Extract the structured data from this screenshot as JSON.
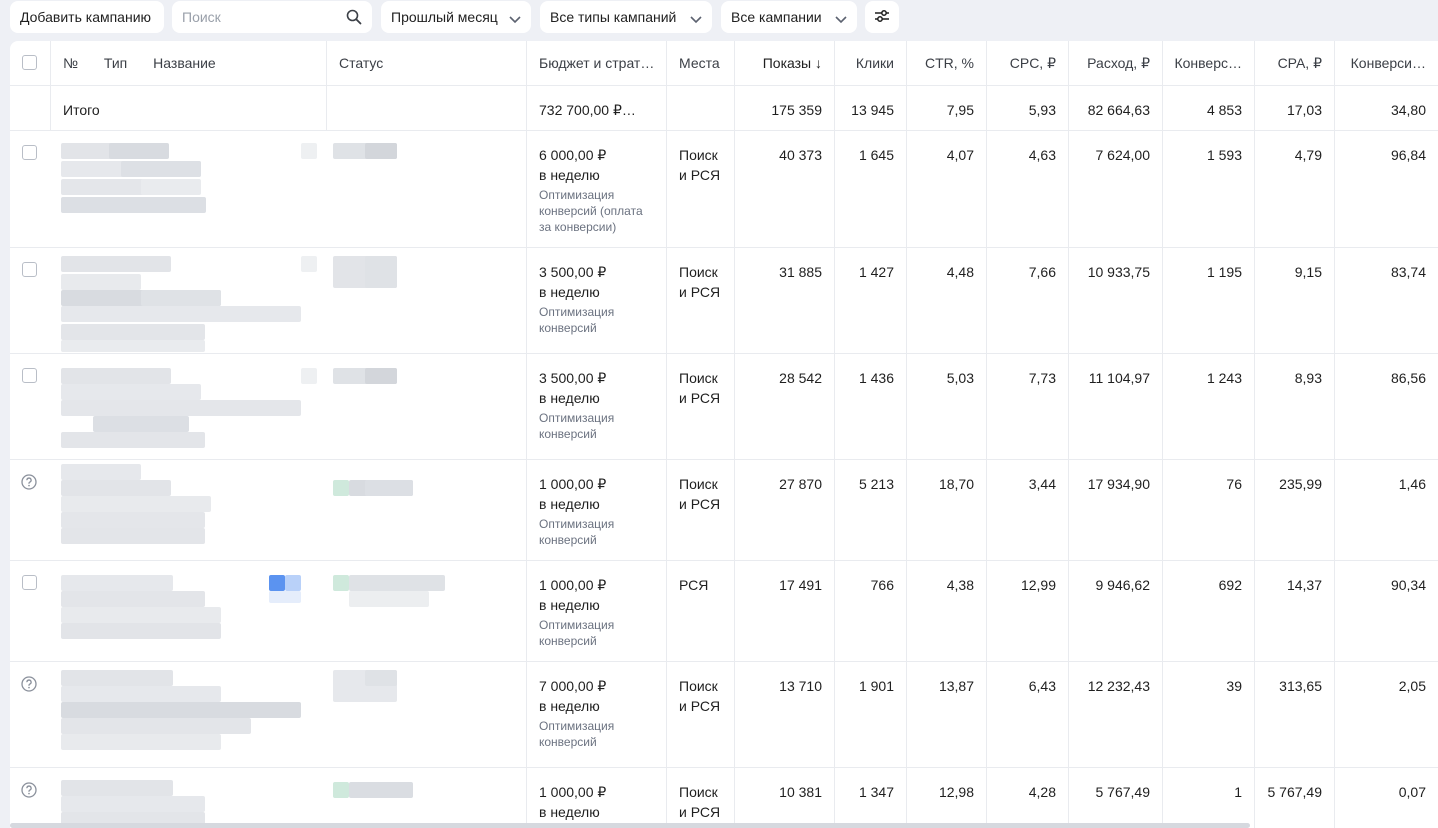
{
  "toolbar": {
    "add_campaign": "Добавить кампанию",
    "search_placeholder": "Поиск",
    "period": "Прошлый месяц",
    "campaign_types": "Все типы кампаний",
    "campaigns_filter": "Все кампании"
  },
  "columns": {
    "no": "№",
    "type": "Тип",
    "name": "Название",
    "status": "Статус",
    "budget": "Бюджет и страт…",
    "places": "Места",
    "shows": "Показы ↓",
    "clicks": "Клики",
    "ctr": "CTR, %",
    "cpc": "CPC, ₽",
    "spend": "Расход, ₽",
    "conversions": "Конверс…",
    "cpa": "CPA, ₽",
    "conv_rate": "Конверси…"
  },
  "total": {
    "label": "Итого",
    "budget": "732 700,00 ₽…",
    "shows": "175 359",
    "clicks": "13 945",
    "ctr": "7,95",
    "cpc": "5,93",
    "spend": "82 664,63",
    "conversions": "4 853",
    "cpa": "17,03",
    "conv_rate": "34,80"
  },
  "rows": [
    {
      "icon": "checkbox",
      "budget": "6 000,00 ₽",
      "period": "в неделю",
      "strategy": "Оптимизация конверсий (оплата за конверсии)",
      "place1": "Поиск",
      "place2": "и РСЯ",
      "shows": "40 373",
      "clicks": "1 645",
      "ctr": "4,07",
      "cpc": "4,63",
      "spend": "7 624,00",
      "conversions": "1 593",
      "cpa": "4,79",
      "conv_rate": "96,84"
    },
    {
      "icon": "checkbox",
      "budget": "3 500,00 ₽",
      "period": "в неделю",
      "strategy": "Оптимизация конверсий",
      "place1": "Поиск",
      "place2": "и РСЯ",
      "shows": "31 885",
      "clicks": "1 427",
      "ctr": "4,48",
      "cpc": "7,66",
      "spend": "10 933,75",
      "conversions": "1 195",
      "cpa": "9,15",
      "conv_rate": "83,74"
    },
    {
      "icon": "checkbox",
      "budget": "3 500,00 ₽",
      "period": "в неделю",
      "strategy": "Оптимизация конверсий",
      "place1": "Поиск",
      "place2": "и РСЯ",
      "shows": "28 542",
      "clicks": "1 436",
      "ctr": "5,03",
      "cpc": "7,73",
      "spend": "11 104,97",
      "conversions": "1 243",
      "cpa": "8,93",
      "conv_rate": "86,56"
    },
    {
      "icon": "help",
      "budget": "1 000,00 ₽",
      "period": "в неделю",
      "strategy": "Оптимизация конверсий",
      "place1": "Поиск",
      "place2": "и РСЯ",
      "shows": "27 870",
      "clicks": "5 213",
      "ctr": "18,70",
      "cpc": "3,44",
      "spend": "17 934,90",
      "conversions": "76",
      "cpa": "235,99",
      "conv_rate": "1,46"
    },
    {
      "icon": "checkbox",
      "budget": "1 000,00 ₽",
      "period": "в неделю",
      "strategy": "Оптимизация конверсий",
      "place1": "РСЯ",
      "place2": "",
      "shows": "17 491",
      "clicks": "766",
      "ctr": "4,38",
      "cpc": "12,99",
      "spend": "9 946,62",
      "conversions": "692",
      "cpa": "14,37",
      "conv_rate": "90,34"
    },
    {
      "icon": "help",
      "budget": "7 000,00 ₽",
      "period": "в неделю",
      "strategy": "Оптимизация конверсий",
      "place1": "Поиск",
      "place2": "и РСЯ",
      "shows": "13 710",
      "clicks": "1 901",
      "ctr": "13,87",
      "cpc": "6,43",
      "spend": "12 232,43",
      "conversions": "39",
      "cpa": "313,65",
      "conv_rate": "2,05"
    },
    {
      "icon": "help",
      "budget": "1 000,00 ₽",
      "period": "в неделю",
      "strategy": "",
      "place1": "Поиск",
      "place2": "и РСЯ",
      "shows": "10 381",
      "clicks": "1 347",
      "ctr": "12,98",
      "cpc": "4,28",
      "spend": "5 767,49",
      "conversions": "1",
      "cpa": "5 767,49",
      "conv_rate": "0,07"
    }
  ]
}
